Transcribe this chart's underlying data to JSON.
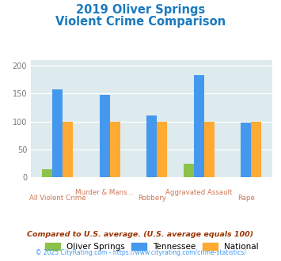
{
  "title_line1": "2019 Oliver Springs",
  "title_line2": "Violent Crime Comparison",
  "title_color": "#1a7abf",
  "cat_top": [
    "",
    "Murder & Mans...",
    "",
    "Aggravated Assault",
    ""
  ],
  "cat_bot": [
    "All Violent Crime",
    "",
    "Robbery",
    "",
    "Rape"
  ],
  "cat_top_color": "#cc7755",
  "cat_bot_color": "#cc7755",
  "oliver_springs": [
    15,
    0,
    0,
    25,
    0
  ],
  "tennessee": [
    157,
    147,
    111,
    183,
    98
  ],
  "national": [
    100,
    100,
    100,
    100,
    100
  ],
  "oliver_springs_color": "#8bc34a",
  "tennessee_color": "#4499ee",
  "national_color": "#ffaa33",
  "background_color": "#ddeaee",
  "ylim": [
    0,
    210
  ],
  "yticks": [
    0,
    50,
    100,
    150,
    200
  ],
  "bar_width": 0.22,
  "legend_labels": [
    "Oliver Springs",
    "Tennessee",
    "National"
  ],
  "footnote1": "Compared to U.S. average. (U.S. average equals 100)",
  "footnote2": "© 2025 CityRating.com - https://www.cityrating.com/crime-statistics/",
  "footnote1_color": "#993300",
  "footnote2_color": "#4499ee"
}
